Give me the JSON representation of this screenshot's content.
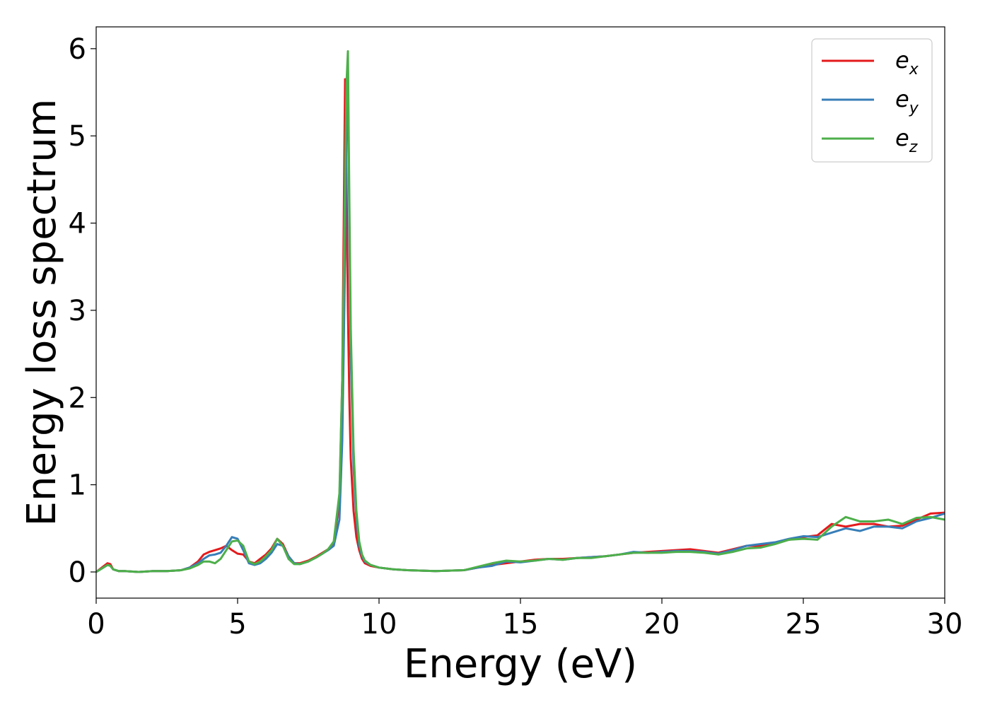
{
  "chart_data": {
    "type": "line",
    "title": "",
    "xlabel": "Energy (eV)",
    "ylabel": "Energy loss spectrum",
    "xlim": [
      0,
      30
    ],
    "ylim": [
      -0.3,
      6.25
    ],
    "xticks": [
      0,
      5,
      10,
      15,
      20,
      25,
      30
    ],
    "yticks": [
      0,
      1,
      2,
      3,
      4,
      5,
      6
    ],
    "grid": false,
    "legend_position": "top-right",
    "series": [
      {
        "name": "e",
        "subscript": "x",
        "color": "#e41a1c",
        "x": [
          0,
          0.2,
          0.4,
          0.5,
          0.6,
          0.8,
          1.0,
          1.5,
          2.0,
          2.5,
          3.0,
          3.3,
          3.6,
          3.8,
          4.0,
          4.2,
          4.4,
          4.6,
          4.8,
          5.0,
          5.2,
          5.4,
          5.6,
          5.8,
          6.0,
          6.2,
          6.4,
          6.6,
          6.8,
          7.0,
          7.2,
          7.5,
          7.8,
          8.0,
          8.2,
          8.4,
          8.6,
          8.7,
          8.8,
          8.85,
          8.9,
          8.95,
          9.0,
          9.1,
          9.2,
          9.3,
          9.4,
          9.5,
          9.7,
          10.0,
          10.5,
          11.0,
          12.0,
          13.0,
          13.5,
          14.0,
          14.5,
          15.0,
          15.5,
          16.0,
          16.5,
          17.0,
          17.5,
          18.0,
          18.5,
          19.0,
          19.5,
          20.0,
          20.5,
          21.0,
          21.5,
          22.0,
          22.5,
          23.0,
          23.5,
          24.0,
          24.5,
          25.0,
          25.5,
          26.0,
          26.5,
          27.0,
          27.5,
          28.0,
          28.5,
          29.0,
          29.5,
          30.0
        ],
        "y": [
          0.0,
          0.05,
          0.1,
          0.09,
          0.03,
          0.01,
          0.01,
          0.0,
          0.01,
          0.01,
          0.02,
          0.05,
          0.12,
          0.2,
          0.23,
          0.25,
          0.27,
          0.3,
          0.25,
          0.21,
          0.2,
          0.12,
          0.1,
          0.15,
          0.2,
          0.27,
          0.38,
          0.32,
          0.18,
          0.1,
          0.1,
          0.13,
          0.18,
          0.22,
          0.26,
          0.34,
          0.8,
          2.2,
          5.65,
          4.5,
          3.0,
          2.0,
          1.3,
          0.7,
          0.4,
          0.25,
          0.15,
          0.1,
          0.07,
          0.05,
          0.03,
          0.02,
          0.01,
          0.02,
          0.05,
          0.08,
          0.1,
          0.12,
          0.14,
          0.15,
          0.15,
          0.16,
          0.17,
          0.18,
          0.2,
          0.22,
          0.23,
          0.24,
          0.25,
          0.26,
          0.24,
          0.22,
          0.26,
          0.3,
          0.3,
          0.33,
          0.37,
          0.4,
          0.42,
          0.55,
          0.52,
          0.55,
          0.55,
          0.52,
          0.53,
          0.6,
          0.67,
          0.68
        ]
      },
      {
        "name": "e",
        "subscript": "y",
        "color": "#377eb8",
        "x": [
          0,
          0.2,
          0.4,
          0.5,
          0.6,
          0.8,
          1.0,
          1.5,
          2.0,
          2.5,
          3.0,
          3.3,
          3.6,
          3.8,
          4.0,
          4.2,
          4.4,
          4.6,
          4.8,
          5.0,
          5.2,
          5.4,
          5.6,
          5.8,
          6.0,
          6.2,
          6.4,
          6.6,
          6.8,
          7.0,
          7.2,
          7.5,
          7.8,
          8.0,
          8.2,
          8.4,
          8.6,
          8.7,
          8.8,
          8.85,
          8.9,
          8.95,
          9.0,
          9.1,
          9.2,
          9.3,
          9.4,
          9.5,
          9.7,
          10.0,
          10.5,
          11.0,
          12.0,
          13.0,
          13.5,
          14.0,
          14.5,
          15.0,
          15.5,
          16.0,
          16.5,
          17.0,
          17.5,
          18.0,
          18.5,
          19.0,
          19.5,
          20.0,
          20.5,
          21.0,
          21.5,
          22.0,
          22.5,
          23.0,
          23.5,
          24.0,
          24.5,
          25.0,
          25.5,
          26.0,
          26.5,
          27.0,
          27.5,
          28.0,
          28.5,
          29.0,
          29.5,
          30.0
        ],
        "y": [
          0.0,
          0.04,
          0.08,
          0.07,
          0.03,
          0.01,
          0.01,
          0.0,
          0.01,
          0.01,
          0.02,
          0.05,
          0.1,
          0.15,
          0.19,
          0.2,
          0.22,
          0.3,
          0.4,
          0.38,
          0.25,
          0.1,
          0.08,
          0.1,
          0.15,
          0.22,
          0.32,
          0.3,
          0.18,
          0.1,
          0.09,
          0.12,
          0.17,
          0.21,
          0.25,
          0.3,
          0.6,
          1.5,
          3.6,
          5.0,
          5.8,
          4.0,
          2.5,
          1.2,
          0.6,
          0.3,
          0.18,
          0.12,
          0.08,
          0.05,
          0.03,
          0.02,
          0.01,
          0.02,
          0.05,
          0.07,
          0.12,
          0.11,
          0.13,
          0.15,
          0.14,
          0.16,
          0.17,
          0.18,
          0.2,
          0.23,
          0.22,
          0.23,
          0.24,
          0.24,
          0.23,
          0.21,
          0.25,
          0.3,
          0.32,
          0.34,
          0.38,
          0.41,
          0.4,
          0.45,
          0.5,
          0.47,
          0.52,
          0.52,
          0.5,
          0.58,
          0.62,
          0.67
        ]
      },
      {
        "name": "e",
        "subscript": "z",
        "color": "#4daf4a",
        "x": [
          0,
          0.2,
          0.4,
          0.5,
          0.6,
          0.8,
          1.0,
          1.5,
          2.0,
          2.5,
          3.0,
          3.3,
          3.6,
          3.8,
          4.0,
          4.2,
          4.4,
          4.6,
          4.8,
          5.0,
          5.2,
          5.4,
          5.6,
          5.8,
          6.0,
          6.2,
          6.4,
          6.6,
          6.8,
          7.0,
          7.2,
          7.5,
          7.8,
          8.0,
          8.2,
          8.4,
          8.6,
          8.7,
          8.8,
          8.85,
          8.9,
          8.95,
          9.0,
          9.1,
          9.2,
          9.3,
          9.4,
          9.5,
          9.7,
          10.0,
          10.5,
          11.0,
          12.0,
          13.0,
          13.5,
          14.0,
          14.5,
          15.0,
          15.5,
          16.0,
          16.5,
          17.0,
          17.5,
          18.0,
          18.5,
          19.0,
          19.5,
          20.0,
          20.5,
          21.0,
          21.5,
          22.0,
          22.5,
          23.0,
          23.5,
          24.0,
          24.5,
          25.0,
          25.5,
          26.0,
          26.5,
          27.0,
          27.5,
          28.0,
          28.5,
          29.0,
          29.5,
          30.0
        ],
        "y": [
          0.0,
          0.04,
          0.08,
          0.07,
          0.03,
          0.01,
          0.01,
          0.0,
          0.01,
          0.01,
          0.02,
          0.04,
          0.08,
          0.12,
          0.12,
          0.1,
          0.15,
          0.25,
          0.35,
          0.36,
          0.3,
          0.12,
          0.09,
          0.12,
          0.18,
          0.25,
          0.38,
          0.3,
          0.15,
          0.09,
          0.09,
          0.12,
          0.17,
          0.21,
          0.26,
          0.35,
          0.9,
          2.2,
          4.5,
          5.6,
          5.97,
          4.3,
          2.8,
          1.4,
          0.7,
          0.35,
          0.2,
          0.13,
          0.08,
          0.05,
          0.03,
          0.02,
          0.01,
          0.02,
          0.06,
          0.1,
          0.13,
          0.12,
          0.13,
          0.15,
          0.14,
          0.16,
          0.16,
          0.18,
          0.2,
          0.22,
          0.22,
          0.22,
          0.23,
          0.23,
          0.22,
          0.2,
          0.23,
          0.27,
          0.28,
          0.32,
          0.37,
          0.38,
          0.37,
          0.52,
          0.63,
          0.58,
          0.58,
          0.6,
          0.55,
          0.62,
          0.63,
          0.6
        ]
      }
    ]
  }
}
